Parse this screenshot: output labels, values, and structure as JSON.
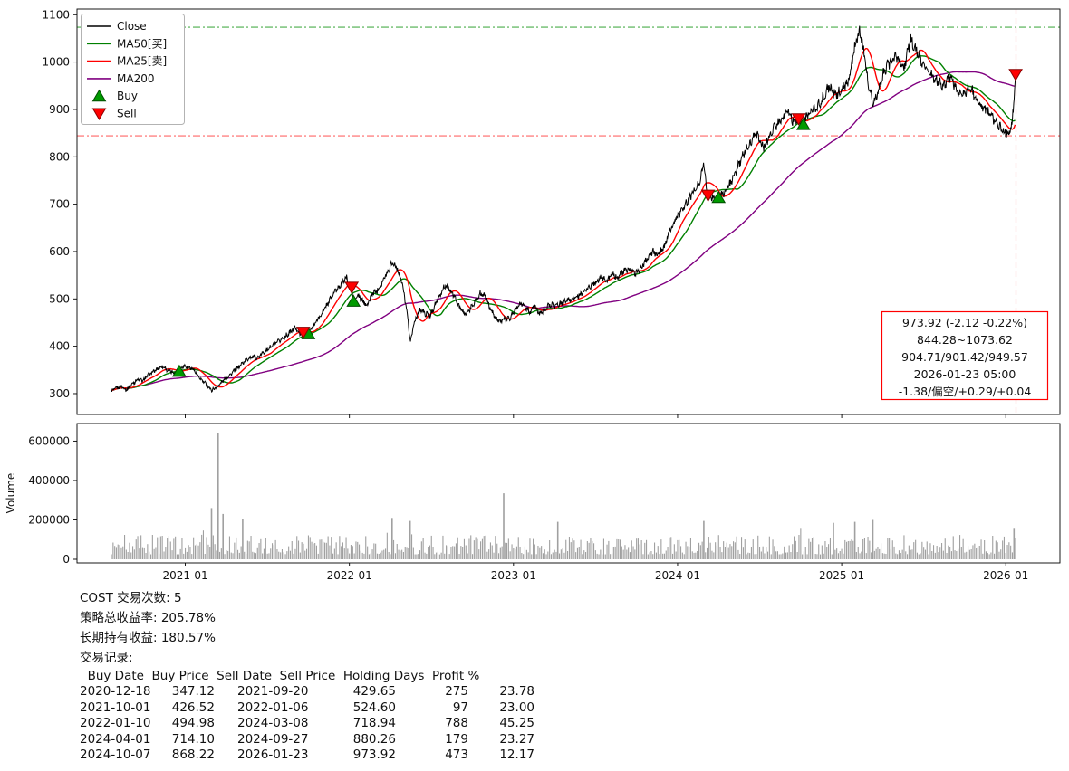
{
  "chart_data": [
    {
      "type": "line",
      "name": "price-panel",
      "xlim": [
        2020.34,
        2026.33
      ],
      "ylim": [
        256,
        1112
      ],
      "y_ticks": [
        300,
        400,
        500,
        600,
        700,
        800,
        900,
        1000,
        1100
      ],
      "x_ticks": [
        {
          "t": 2021.0,
          "label": "2021-01"
        },
        {
          "t": 2022.0,
          "label": "2022-01"
        },
        {
          "t": 2023.0,
          "label": "2023-01"
        },
        {
          "t": 2024.0,
          "label": "2024-01"
        },
        {
          "t": 2025.0,
          "label": "2025-01"
        },
        {
          "t": 2026.0,
          "label": "2026-01"
        }
      ],
      "legend": [
        {
          "label": "Close",
          "type": "line",
          "color": "#000000"
        },
        {
          "label": "MA50[买]",
          "type": "line",
          "color": "#008000"
        },
        {
          "label": "MA25[卖]",
          "type": "line",
          "color": "#ff0000"
        },
        {
          "label": "MA200",
          "type": "line",
          "color": "#800080"
        },
        {
          "label": "Buy",
          "type": "tri-up",
          "color": "#009a00"
        },
        {
          "label": "Sell",
          "type": "tri-down",
          "color": "#ff0000"
        }
      ],
      "close": {
        "name": "Close",
        "color": "#000000",
        "points": [
          [
            2020.55,
            305
          ],
          [
            2020.58,
            312
          ],
          [
            2020.61,
            316
          ],
          [
            2020.64,
            308
          ],
          [
            2020.68,
            322
          ],
          [
            2020.71,
            330
          ],
          [
            2020.74,
            327
          ],
          [
            2020.77,
            338
          ],
          [
            2020.8,
            345
          ],
          [
            2020.83,
            352
          ],
          [
            2020.86,
            358
          ],
          [
            2020.89,
            350
          ],
          [
            2020.93,
            344
          ],
          [
            2020.96,
            347
          ],
          [
            2020.99,
            360
          ],
          [
            2021.02,
            355
          ],
          [
            2021.05,
            352
          ],
          [
            2021.08,
            335
          ],
          [
            2021.12,
            322
          ],
          [
            2021.16,
            307
          ],
          [
            2021.2,
            316
          ],
          [
            2021.24,
            331
          ],
          [
            2021.28,
            342
          ],
          [
            2021.32,
            355
          ],
          [
            2021.36,
            368
          ],
          [
            2021.4,
            378
          ],
          [
            2021.44,
            375
          ],
          [
            2021.48,
            388
          ],
          [
            2021.52,
            398
          ],
          [
            2021.56,
            408
          ],
          [
            2021.6,
            418
          ],
          [
            2021.64,
            430
          ],
          [
            2021.67,
            440
          ],
          [
            2021.7,
            426
          ],
          [
            2021.72,
            430
          ],
          [
            2021.75,
            427
          ],
          [
            2021.79,
            448
          ],
          [
            2021.83,
            468
          ],
          [
            2021.87,
            492
          ],
          [
            2021.91,
            515
          ],
          [
            2021.95,
            532
          ],
          [
            2021.98,
            545
          ],
          [
            2022.01,
            525
          ],
          [
            2022.03,
            495
          ],
          [
            2022.05,
            508
          ],
          [
            2022.08,
            495
          ],
          [
            2022.11,
            487
          ],
          [
            2022.14,
            512
          ],
          [
            2022.17,
            518
          ],
          [
            2022.2,
            535
          ],
          [
            2022.23,
            555
          ],
          [
            2022.26,
            578
          ],
          [
            2022.29,
            565
          ],
          [
            2022.32,
            535
          ],
          [
            2022.35,
            478
          ],
          [
            2022.37,
            410
          ],
          [
            2022.4,
            455
          ],
          [
            2022.43,
            478
          ],
          [
            2022.46,
            470
          ],
          [
            2022.49,
            462
          ],
          [
            2022.52,
            487
          ],
          [
            2022.55,
            505
          ],
          [
            2022.58,
            528
          ],
          [
            2022.61,
            520
          ],
          [
            2022.64,
            505
          ],
          [
            2022.67,
            482
          ],
          [
            2022.7,
            468
          ],
          [
            2022.73,
            475
          ],
          [
            2022.77,
            498
          ],
          [
            2022.8,
            512
          ],
          [
            2022.83,
            505
          ],
          [
            2022.86,
            478
          ],
          [
            2022.89,
            462
          ],
          [
            2022.92,
            452
          ],
          [
            2022.95,
            458
          ],
          [
            2022.98,
            460
          ],
          [
            2023.01,
            478
          ],
          [
            2023.04,
            492
          ],
          [
            2023.07,
            484
          ],
          [
            2023.1,
            472
          ],
          [
            2023.13,
            484
          ],
          [
            2023.16,
            468
          ],
          [
            2023.19,
            478
          ],
          [
            2023.22,
            488
          ],
          [
            2023.26,
            486
          ],
          [
            2023.3,
            492
          ],
          [
            2023.34,
            498
          ],
          [
            2023.38,
            503
          ],
          [
            2023.42,
            512
          ],
          [
            2023.46,
            524
          ],
          [
            2023.5,
            536
          ],
          [
            2023.54,
            546
          ],
          [
            2023.57,
            538
          ],
          [
            2023.6,
            552
          ],
          [
            2023.63,
            545
          ],
          [
            2023.66,
            556
          ],
          [
            2023.7,
            562
          ],
          [
            2023.74,
            554
          ],
          [
            2023.78,
            566
          ],
          [
            2023.82,
            588
          ],
          [
            2023.85,
            600
          ],
          [
            2023.88,
            592
          ],
          [
            2023.92,
            612
          ],
          [
            2023.95,
            640
          ],
          [
            2023.98,
            662
          ],
          [
            2024.02,
            685
          ],
          [
            2024.06,
            705
          ],
          [
            2024.1,
            728
          ],
          [
            2024.13,
            742
          ],
          [
            2024.16,
            788
          ],
          [
            2024.18,
            722
          ],
          [
            2024.21,
            716
          ],
          [
            2024.25,
            714
          ],
          [
            2024.28,
            722
          ],
          [
            2024.32,
            742
          ],
          [
            2024.36,
            772
          ],
          [
            2024.4,
            805
          ],
          [
            2024.44,
            828
          ],
          [
            2024.48,
            850
          ],
          [
            2024.52,
            818
          ],
          [
            2024.56,
            842
          ],
          [
            2024.6,
            868
          ],
          [
            2024.64,
            882
          ],
          [
            2024.67,
            902
          ],
          [
            2024.7,
            878
          ],
          [
            2024.73,
            882
          ],
          [
            2024.76,
            868
          ],
          [
            2024.8,
            892
          ],
          [
            2024.84,
            902
          ],
          [
            2024.88,
            918
          ],
          [
            2024.92,
            948
          ],
          [
            2024.96,
            928
          ],
          [
            2025.0,
            942
          ],
          [
            2025.04,
            958
          ],
          [
            2025.08,
            1035
          ],
          [
            2025.11,
            1068
          ],
          [
            2025.14,
            1010
          ],
          [
            2025.16,
            962
          ],
          [
            2025.19,
            908
          ],
          [
            2025.22,
            938
          ],
          [
            2025.26,
            982
          ],
          [
            2025.3,
            1002
          ],
          [
            2025.34,
            1012
          ],
          [
            2025.38,
            988
          ],
          [
            2025.42,
            1048
          ],
          [
            2025.46,
            1022
          ],
          [
            2025.5,
            992
          ],
          [
            2025.54,
            976
          ],
          [
            2025.58,
            962
          ],
          [
            2025.62,
            948
          ],
          [
            2025.66,
            968
          ],
          [
            2025.7,
            942
          ],
          [
            2025.74,
            930
          ],
          [
            2025.78,
            952
          ],
          [
            2025.82,
            922
          ],
          [
            2025.86,
            906
          ],
          [
            2025.9,
            892
          ],
          [
            2025.94,
            872
          ],
          [
            2025.98,
            856
          ],
          [
            2026.02,
            848
          ],
          [
            2026.04,
            872
          ],
          [
            2026.06,
            973.92
          ]
        ]
      },
      "ma_lines": [
        {
          "name": "MA200",
          "color": "#800080",
          "window_days": 200
        },
        {
          "name": "MA50[买]",
          "color": "#008000",
          "window_days": 50
        },
        {
          "name": "MA25[卖]",
          "color": "#ff0000",
          "window_days": 25
        }
      ],
      "hlines": [
        {
          "y": 1073.62,
          "color": "#2ca02c",
          "dash": "8 3 2 3"
        },
        {
          "y": 844.28,
          "color": "#ff4d4d",
          "dash": "8 3 2 3"
        }
      ],
      "vline": {
        "t": 2026.062,
        "color": "#ff3333",
        "dash": "6 4"
      },
      "annotation": {
        "color": "#ff0000",
        "lines": [
          "973.92 (-2.12 -0.22%)",
          "844.28~1073.62",
          "904.71/901.42/949.57",
          "2026-01-23 05:00",
          "-1.38/偏空/+0.29/+0.04"
        ]
      }
    },
    {
      "type": "bar",
      "name": "volume-panel",
      "ylabel": "Volume",
      "color": "#a0a0a0",
      "y_ticks": [
        0,
        200000,
        400000,
        600000
      ],
      "ylim": [
        0,
        680000
      ],
      "range": [
        2020.55,
        2026.06
      ],
      "baseline": [
        25000,
        125000
      ],
      "spikes": [
        [
          2021.16,
          260000
        ],
        [
          2021.2,
          640000
        ],
        [
          2021.23,
          230000
        ],
        [
          2021.35,
          205000
        ],
        [
          2022.26,
          210000
        ],
        [
          2022.37,
          195000
        ],
        [
          2022.94,
          335000
        ],
        [
          2023.27,
          190000
        ],
        [
          2024.16,
          195000
        ],
        [
          2024.95,
          185000
        ],
        [
          2025.08,
          190000
        ],
        [
          2025.19,
          200000
        ],
        [
          2026.05,
          155000
        ]
      ]
    }
  ],
  "summary": [
    "COST 交易次数: 5",
    "策略总收益率: 205.78%",
    "长期持有收益: 180.57%",
    "交易记录:"
  ],
  "trades": {
    "headers": [
      "Buy Date",
      "Buy Price",
      "Sell Date",
      "Sell Price",
      "Holding Days",
      "Profit %"
    ],
    "rows": [
      [
        "2020-12-18",
        "347.12",
        "2021-09-20",
        "429.65",
        "275",
        "23.78"
      ],
      [
        "2021-10-01",
        "426.52",
        "2022-01-06",
        "524.60",
        "97",
        "23.00"
      ],
      [
        "2022-01-10",
        "494.98",
        "2024-03-08",
        "718.94",
        "788",
        "45.25"
      ],
      [
        "2024-04-01",
        "714.10",
        "2024-09-27",
        "880.26",
        "179",
        "23.27"
      ],
      [
        "2024-10-07",
        "868.22",
        "2026-01-23",
        "973.92",
        "473",
        "12.17"
      ]
    ]
  }
}
